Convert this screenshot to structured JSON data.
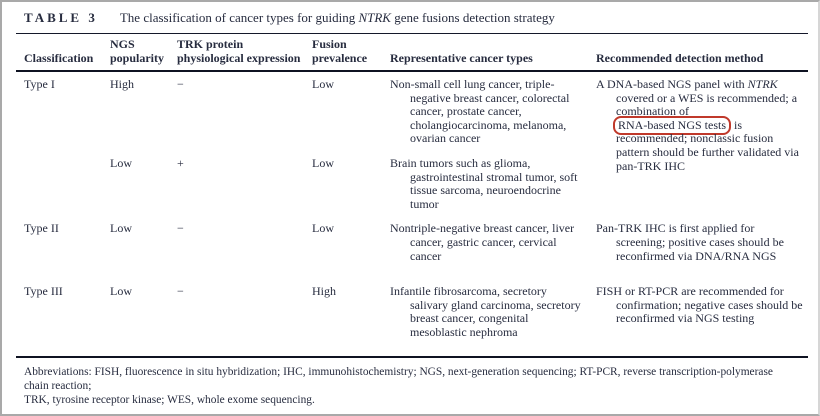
{
  "colors": {
    "annotation_red": "#c0392b",
    "ink": "#272c3f"
  },
  "table": {
    "label": "TABLE 3",
    "caption": {
      "pre": "The classification of cancer types for guiding ",
      "gene": "NTRK",
      "post": " gene fusions detection strategy"
    },
    "columns": [
      "Classification",
      "NGS popularity",
      "TRK protein physiological expression",
      "Fusion prevalence",
      "Representative cancer types",
      "Recommended detection method"
    ],
    "rows": [
      {
        "classification": "Type I",
        "subrows": [
          {
            "ngs": "High",
            "trk": "−",
            "fusion": "Low",
            "cancers": "Non-small cell lung cancer, triple-negative breast cancer, colorectal cancer, prostate cancer, cholangiocarcinoma, melanoma, ovarian cancer"
          },
          {
            "ngs": "Low",
            "trk": "+",
            "fusion": "Low",
            "cancers": "Brain tumors such as glioma, gastrointestinal stromal tumor, soft tissue sarcoma, neuroendocrine tumor"
          }
        ],
        "detection": {
          "pre": "A DNA-based NGS panel with ",
          "gene": "NTRK",
          "mid": " covered or a WES is recommended; a combination of ",
          "highlight": "RNA-based NGS tests",
          "post": " is recommended; nonclassic fusion pattern should be further validated via pan-TRK IHC"
        }
      },
      {
        "classification": "Type II",
        "subrows": [
          {
            "ngs": "Low",
            "trk": "−",
            "fusion": "Low",
            "cancers": "Nontriple-negative breast cancer, liver cancer, gastric cancer, cervical cancer"
          }
        ],
        "detection": {
          "text": "Pan-TRK IHC is first applied for screening; positive cases should be reconfirmed via DNA/RNA NGS"
        }
      },
      {
        "classification": "Type III",
        "subrows": [
          {
            "ngs": "Low",
            "trk": "−",
            "fusion": "High",
            "cancers": "Infantile fibrosarcoma, secretory salivary gland carcinoma, secretory breast cancer, congenital mesoblastic nephroma"
          }
        ],
        "detection": {
          "text": "FISH or RT-PCR are recommended for confirmation; negative cases should be reconfirmed via NGS testing"
        }
      }
    ]
  },
  "footnote": {
    "line1": "Abbreviations: FISH, fluorescence in situ hybridization; IHC, immunohistochemistry; NGS, next-generation sequencing; RT-PCR, reverse transcription-polymerase chain reaction;",
    "line2": "TRK, tyrosine receptor kinase; WES, whole exome sequencing."
  }
}
